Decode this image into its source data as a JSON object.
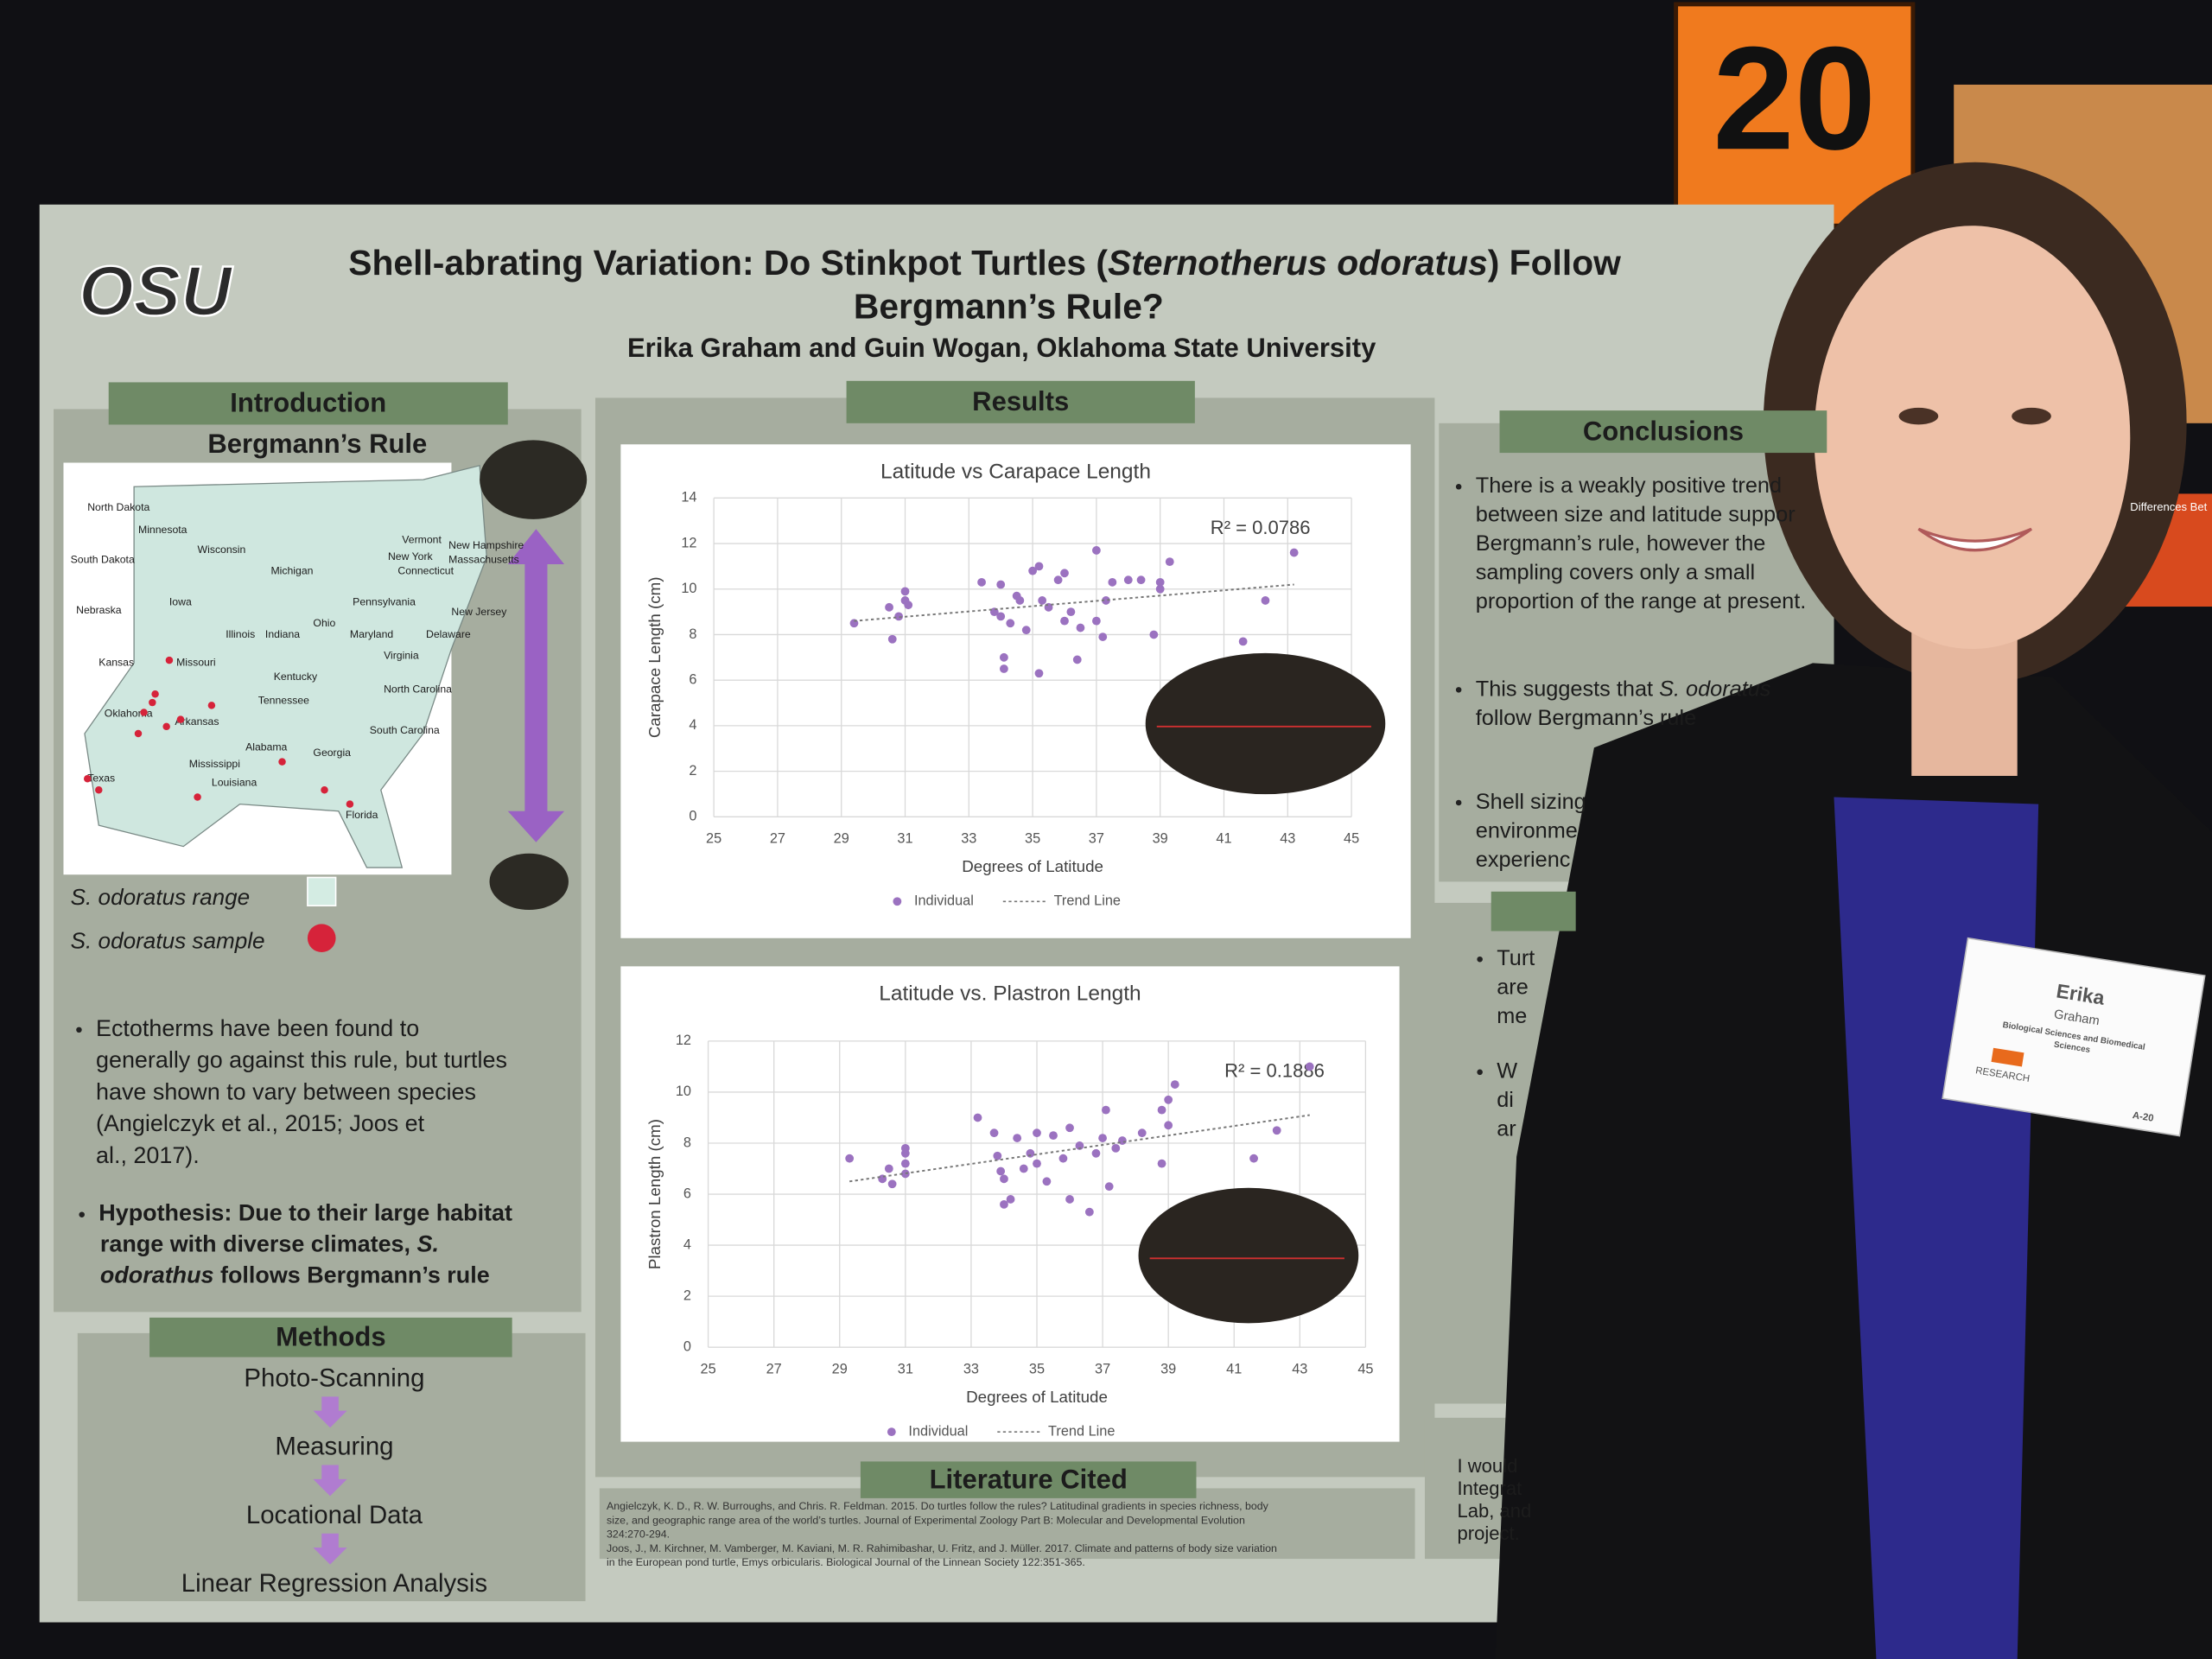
{
  "sign": "20",
  "neighbor_poster": "Differences Bet",
  "poster": {
    "logo": "OSU",
    "title": {
      "line1": [
        "Shell-abrating Variation: Do Stinkpot Turtles (",
        "Sternotherus odoratus",
        ") Follow"
      ],
      "line2": "Bergmann’s Rule?"
    },
    "authors": "Erika Graham and Guin Wogan, Oklahoma State University",
    "introduction": {
      "heading": "Introduction",
      "subheading": "Bergmann’s Rule",
      "map_labels": [
        "North Dakota",
        "Minnesota",
        "Wisconsin",
        "Michigan",
        "South Dakota",
        "Iowa",
        "Nebraska",
        "Illinois",
        "Indiana",
        "Ohio",
        "Pennsylvania",
        "New York",
        "Vermont",
        "New Hampshire",
        "Massachusetts",
        "Connecticut",
        "New Jersey",
        "Maryland",
        "Delaware",
        "Virginia",
        "Kansas",
        "Missouri",
        "Kentucky",
        "Tennessee",
        "North Carolina",
        "Oklahoma",
        "Arkansas",
        "South Carolina",
        "Alabama",
        "Georgia",
        "Mississippi",
        "Louisiana",
        "Texas",
        "Florida"
      ],
      "legend": {
        "range": "S. odoratus range",
        "sample": "S. odoratus sample"
      },
      "bullet": [
        "Ectotherms have been found to",
        "generally go against this rule, but turtles",
        "have shown to vary between species",
        "(Angielczyk et al., 2015; Joos et",
        "al., 2017)."
      ],
      "hypothesis": [
        [
          "Hypothesis: Due to their large habitat"
        ],
        [
          "range with diverse climates, ",
          "S."
        ],
        [
          "odorathus",
          " follows Bergmann’s rule"
        ]
      ]
    },
    "methods": {
      "heading": "Methods",
      "steps": [
        "Photo-Scanning",
        "Measuring",
        "Locational Data",
        "Linear Regression Analysis"
      ]
    },
    "results": {
      "heading": "Results"
    },
    "literature": {
      "heading": "Literature Cited",
      "lines": [
        "Angielczyk, K. D., R. W. Burroughs, and Chris. R. Feldman. 2015. Do turtles follow the rules? Latitudinal gradients in species richness, body",
        "size, and geographic range area of the world’s turtles. Journal of Experimental Zoology Part B: Molecular and Developmental Evolution",
        "324:270-294.",
        "Joos, J., M. Kirchner, M. Vamberger, M. Kaviani, M. R. Rahimibashar, U. Fritz, and J. Müller. 2017. Climate and patterns of body size variation",
        "in the European pond turtle, Emys orbicularis. Biological Journal of the Linnean Society 122:351-365."
      ]
    },
    "conclusions": {
      "heading": "Conclusions",
      "bullets": [
        [
          [
            "There is a weakly positive trend"
          ],
          [
            "between size and latitude suppor"
          ],
          [
            "Bergmann’s rule, however the"
          ],
          [
            "sampling covers only a small"
          ],
          [
            "proportion of the range at present."
          ]
        ],
        [
          [
            "This suggests that ",
            "S. odoratus"
          ],
          [
            "follow Bergmann’s rule"
          ]
        ],
        [
          [
            "Shell sizing"
          ],
          [
            "environme"
          ],
          [
            "experienc"
          ]
        ]
      ]
    },
    "lower_panel": [
      [
        "Turt",
        "are",
        "me"
      ],
      [
        "W",
        "di",
        "ar"
      ]
    ],
    "acknowledgements": [
      "I would",
      "Integrat",
      "Lab, and",
      "project."
    ]
  },
  "badge": {
    "first": "Erika",
    "last": "Graham",
    "dept1": "Biological Sciences and Biomedical",
    "dept2": "Sciences",
    "program": "RESEARCH",
    "code": "A-20"
  },
  "chart_data": [
    {
      "type": "scatter",
      "title": "Latitude vs Carapace Length",
      "x_label": "Degrees of Latitude",
      "y_label": "Carapace Length (cm)",
      "annotation": "R² = 0.0786",
      "xlim": [
        25,
        45
      ],
      "xticks": [
        25,
        27,
        29,
        31,
        33,
        35,
        37,
        39,
        41,
        43,
        45
      ],
      "ylim": [
        0,
        14
      ],
      "yticks": [
        0,
        2,
        4,
        6,
        8,
        10,
        12,
        14
      ],
      "grid": true,
      "series": [
        {
          "name": "Individual",
          "color": "#9b72c0",
          "style": "marker",
          "x": [
            29.4,
            30.5,
            30.6,
            30.8,
            31,
            31,
            31.1,
            33.4,
            33.8,
            34,
            34,
            34.1,
            34.1,
            34.3,
            34.5,
            34.6,
            34.8,
            35,
            35.2,
            35.2,
            35.3,
            35.5,
            35.8,
            36,
            36,
            36.2,
            36.4,
            36.5,
            37,
            37,
            37.2,
            37.3,
            37.5,
            38,
            38.4,
            38.8,
            39,
            39,
            39.3,
            41.6,
            42.3,
            43.2
          ],
          "values": [
            8.5,
            9.2,
            7.8,
            8.8,
            9.5,
            9.9,
            9.3,
            10.3,
            9.0,
            10.2,
            8.8,
            7.0,
            6.5,
            8.5,
            9.7,
            9.5,
            8.2,
            10.8,
            11.0,
            6.3,
            9.5,
            9.2,
            10.4,
            10.7,
            8.6,
            9.0,
            6.9,
            8.3,
            11.7,
            8.6,
            7.9,
            9.5,
            10.3,
            10.4,
            10.4,
            8.0,
            10.0,
            10.3,
            11.2,
            7.7,
            9.5,
            11.6
          ]
        },
        {
          "name": "Trend Line",
          "color": "#777777",
          "style": "dotted",
          "x": [
            29.4,
            43.2
          ],
          "values": [
            8.6,
            10.2
          ]
        }
      ]
    },
    {
      "type": "scatter",
      "title": "Latitude vs. Plastron Length",
      "x_label": "Degrees of Latitude",
      "y_label": "Plastron Length (cm)",
      "annotation": "R² = 0.1886",
      "xlim": [
        25,
        45
      ],
      "xticks": [
        25,
        27,
        29,
        31,
        33,
        35,
        37,
        39,
        41,
        43,
        45
      ],
      "ylim": [
        0,
        12
      ],
      "yticks": [
        0,
        2,
        4,
        6,
        8,
        10,
        12
      ],
      "grid": true,
      "series": [
        {
          "name": "Individual",
          "color": "#9b72c0",
          "style": "marker",
          "x": [
            29.3,
            30.3,
            30.5,
            30.6,
            31,
            31,
            31,
            31,
            33.2,
            33.7,
            33.8,
            33.9,
            34,
            34,
            34.2,
            34.4,
            34.6,
            34.8,
            35,
            35,
            35.3,
            35.5,
            35.8,
            36,
            36,
            36.3,
            36.6,
            36.8,
            37,
            37.1,
            37.2,
            37.4,
            37.6,
            38.2,
            38.8,
            38.8,
            39,
            39,
            39.2,
            41.6,
            42.3,
            43.3
          ],
          "values": [
            7.4,
            6.6,
            7.0,
            6.4,
            7.2,
            7.6,
            7.8,
            6.8,
            9.0,
            8.4,
            7.5,
            6.9,
            6.6,
            5.6,
            5.8,
            8.2,
            7.0,
            7.6,
            8.4,
            7.2,
            6.5,
            8.3,
            7.4,
            8.6,
            5.8,
            7.9,
            5.3,
            7.6,
            8.2,
            9.3,
            6.3,
            7.8,
            8.1,
            8.4,
            9.3,
            7.2,
            8.7,
            9.7,
            10.3,
            7.4,
            8.5,
            11.0
          ]
        },
        {
          "name": "Trend Line",
          "color": "#777777",
          "style": "dotted",
          "x": [
            29.3,
            43.3
          ],
          "values": [
            6.5,
            9.1
          ]
        }
      ]
    }
  ]
}
